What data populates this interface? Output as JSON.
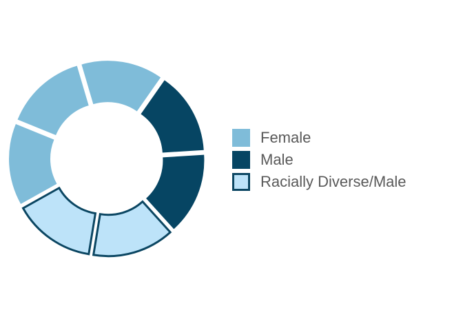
{
  "chart_data": {
    "type": "donut",
    "categories": [
      "Female",
      "Male",
      "Racially Diverse/Male"
    ],
    "values": [
      3,
      2,
      2
    ],
    "colors": [
      "#7fbcd9",
      "#064563",
      "#bde3f9"
    ],
    "outline": [
      null,
      null,
      "#0b4662"
    ],
    "legend": "right"
  }
}
